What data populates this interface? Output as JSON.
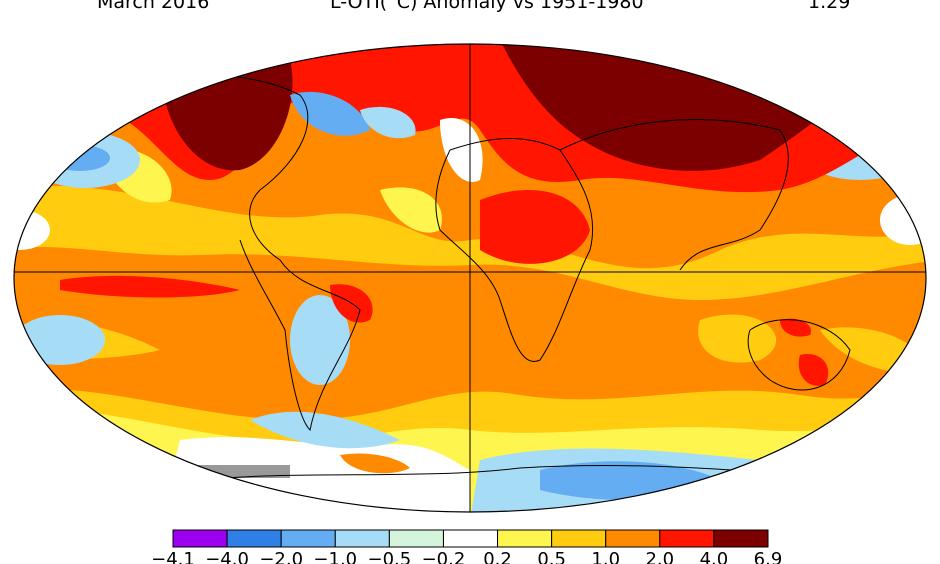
{
  "header": {
    "date": "March 2016",
    "title": "L-OTI(°C) Anomaly vs 1951-1980",
    "mean": "1.29"
  },
  "legend": {
    "labels": [
      "−4.1",
      "−4.0",
      "−2.0",
      "−1.0",
      "−0.5",
      "−0.2",
      "0.2",
      "0.5",
      "1.0",
      "2.0",
      "4.0",
      "6.9"
    ],
    "colors": [
      "#9b00f0",
      "#2f7fe6",
      "#64adf2",
      "#a6dcf5",
      "#d4f4dc",
      "#ffffff",
      "#fff54f",
      "#ffcc10",
      "#ff8a00",
      "#ff1500",
      "#7d0000"
    ]
  }
}
